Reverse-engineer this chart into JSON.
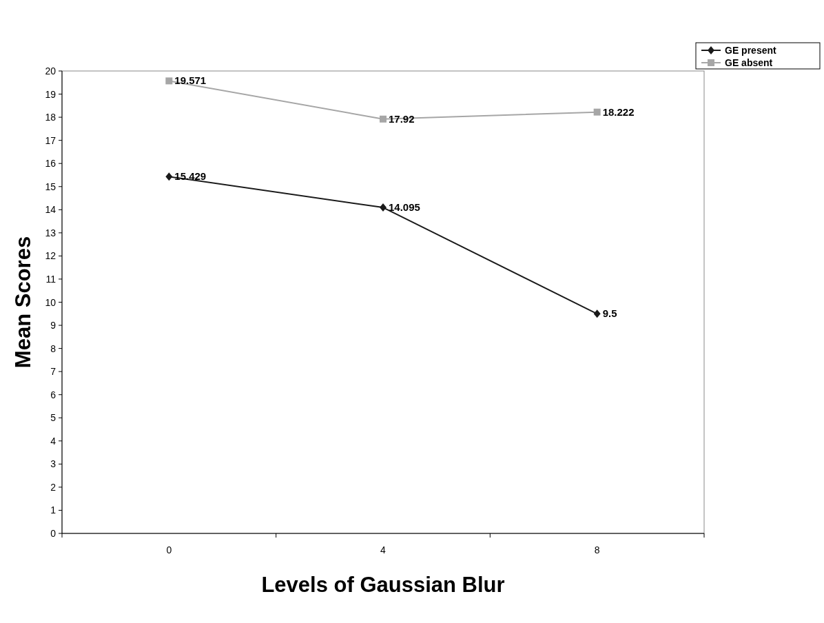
{
  "chart_data": {
    "type": "line",
    "xlabel": "Levels of Gaussian Blur",
    "ylabel": "Mean Scores",
    "categories": [
      "0",
      "4",
      "8"
    ],
    "series": [
      {
        "name": "GE present",
        "color": "#1a1a1a",
        "marker": "diamond",
        "values": [
          15.429,
          14.095,
          9.5
        ]
      },
      {
        "name": "GE absent",
        "color": "#a6a6a6",
        "marker": "square",
        "values": [
          19.571,
          17.92,
          18.222
        ]
      }
    ],
    "ylim": [
      0,
      20
    ],
    "yticks": [
      0,
      1,
      2,
      3,
      4,
      5,
      6,
      7,
      8,
      9,
      10,
      11,
      12,
      13,
      14,
      15,
      16,
      17,
      18,
      19,
      20
    ],
    "grid": false,
    "legend": "top right",
    "data_labels": true
  }
}
